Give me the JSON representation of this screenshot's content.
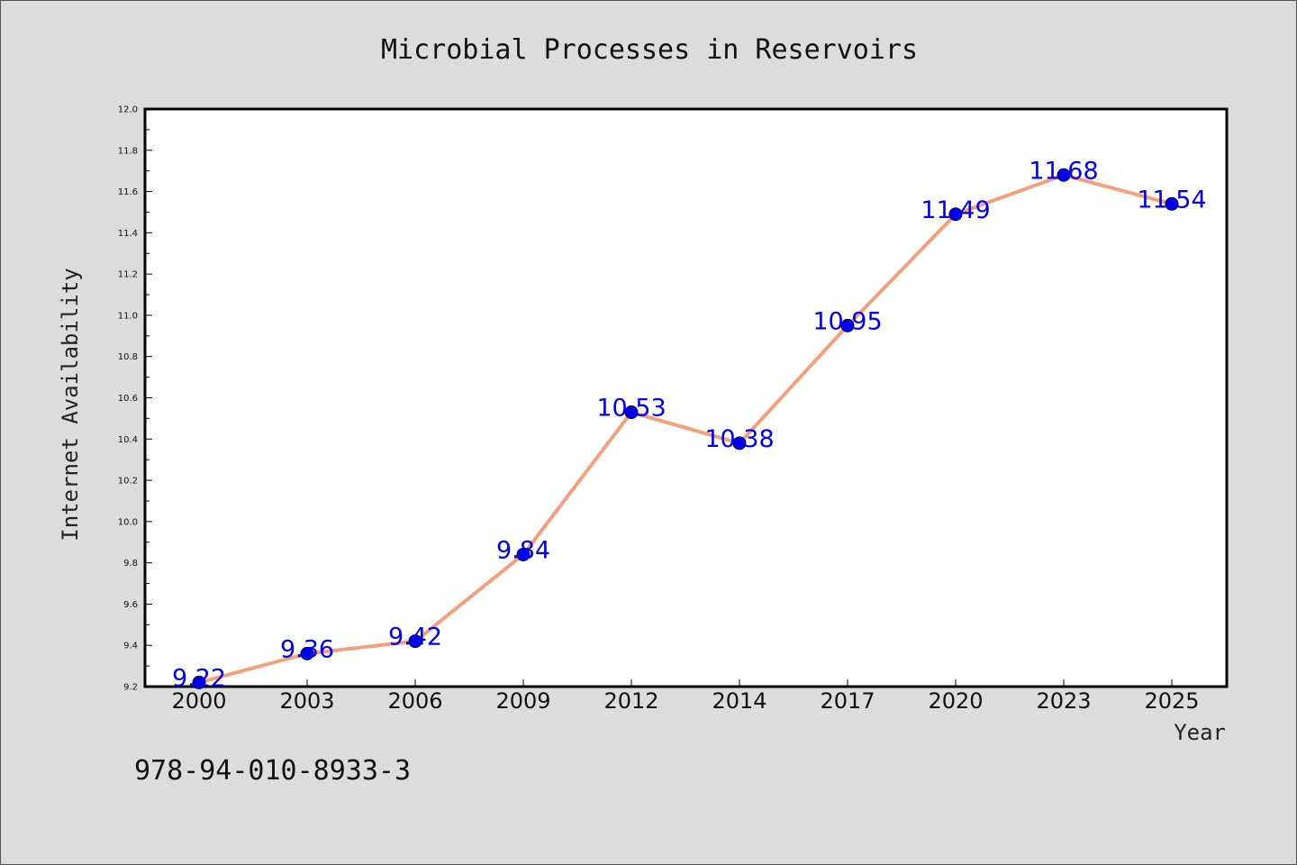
{
  "chart_data": {
    "type": "line",
    "title": "Microbial Processes in Reservoirs",
    "xlabel": "Year",
    "ylabel": "Internet Availability",
    "categories": [
      "2000",
      "2003",
      "2006",
      "2009",
      "2012",
      "2014",
      "2017",
      "2020",
      "2023",
      "2025"
    ],
    "values": [
      9.22,
      9.36,
      9.42,
      9.84,
      10.53,
      10.38,
      10.95,
      11.49,
      11.68,
      11.54
    ],
    "data_labels": [
      "9.22",
      "9.36",
      "9.42",
      "9.84",
      "10.53",
      "10.38",
      "10.95",
      "11.49",
      "11.68",
      "11.54"
    ],
    "ylim": [
      9.2,
      12.0
    ],
    "yticks": [
      "9.2",
      "9.4",
      "9.6",
      "9.8",
      "10.0",
      "10.2",
      "10.4",
      "10.6",
      "10.8",
      "11.0",
      "11.2",
      "11.4",
      "11.6",
      "11.8",
      "12.0"
    ],
    "grid": false,
    "legend": "none",
    "colors": {
      "line": "#f4a07c",
      "marker": "#0000ee",
      "data_label": "#0000ee",
      "background": "#dcdcdc",
      "plot_background": "#ffffff"
    }
  },
  "annotation": "978-94-010-8933-3"
}
